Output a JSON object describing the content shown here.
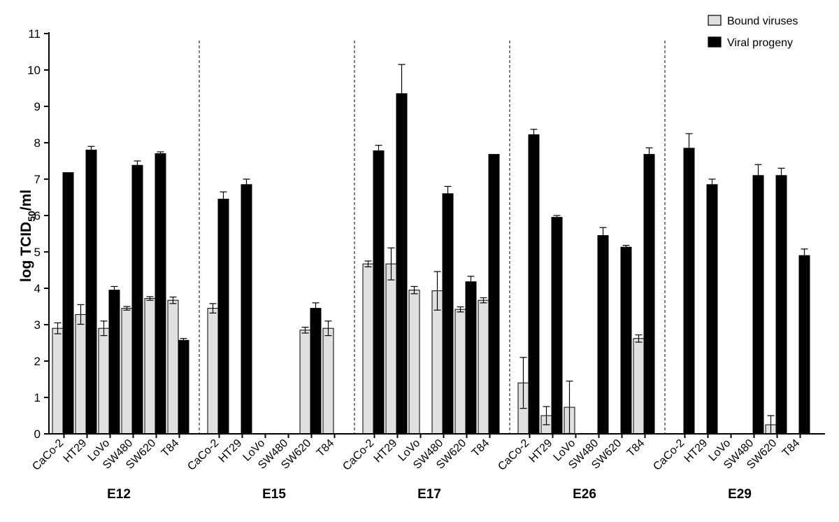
{
  "chart_data": {
    "type": "bar",
    "ylabel": "log TCID50/ml",
    "ylabel_main": "log TCID",
    "ylabel_sub": "50",
    "ylabel_tail": "/ml",
    "ylim": [
      0,
      11
    ],
    "yticks": [
      0,
      1,
      2,
      3,
      4,
      5,
      6,
      7,
      8,
      9,
      10,
      11
    ],
    "legend_position": "top-right",
    "colors": {
      "bound": "#e0e0e0",
      "progeny": "#000000",
      "edge": "#000000"
    },
    "series": [
      {
        "name": "Bound viruses",
        "key": "bound"
      },
      {
        "name": "Viral progeny",
        "key": "progeny"
      }
    ],
    "groups": [
      {
        "label": "E12",
        "cells": [
          {
            "label": "CaCo-2",
            "bound": 2.9,
            "bound_err": 0.15,
            "progeny": 7.18,
            "progeny_err": null
          },
          {
            "label": "HT29",
            "bound": 3.28,
            "bound_err": 0.27,
            "progeny": 7.8,
            "progeny_err": 0.1
          },
          {
            "label": "LoVo",
            "bound": 2.9,
            "bound_err": 0.2,
            "progeny": 3.95,
            "progeny_err": 0.1
          },
          {
            "label": "SW480",
            "bound": 3.45,
            "bound_err": 0.05,
            "progeny": 7.38,
            "progeny_err": 0.12
          },
          {
            "label": "SW620",
            "bound": 3.72,
            "bound_err": 0.05,
            "progeny": 7.7,
            "progeny_err": 0.05
          },
          {
            "label": "T84",
            "bound": 3.67,
            "bound_err": 0.09,
            "progeny": 2.57,
            "progeny_err": 0.05
          }
        ]
      },
      {
        "label": "E15",
        "cells": [
          {
            "label": "CaCo-2",
            "bound": 3.45,
            "bound_err": 0.13,
            "progeny": 6.45,
            "progeny_err": 0.2
          },
          {
            "label": "HT29",
            "bound": null,
            "bound_err": null,
            "progeny": 6.85,
            "progeny_err": 0.15
          },
          {
            "label": "LoVo",
            "bound": null,
            "bound_err": null,
            "progeny": null,
            "progeny_err": null
          },
          {
            "label": "SW480",
            "bound": null,
            "bound_err": null,
            "progeny": null,
            "progeny_err": null
          },
          {
            "label": "SW620",
            "bound": 2.85,
            "bound_err": 0.08,
            "progeny": 3.45,
            "progeny_err": 0.15
          },
          {
            "label": "T84",
            "bound": 2.9,
            "bound_err": 0.2,
            "progeny": null,
            "progeny_err": null
          }
        ]
      },
      {
        "label": "E17",
        "cells": [
          {
            "label": "CaCo-2",
            "bound": 4.67,
            "bound_err": 0.08,
            "progeny": 7.78,
            "progeny_err": 0.15
          },
          {
            "label": "HT29",
            "bound": 4.67,
            "bound_err": 0.44,
            "progeny": 9.35,
            "progeny_err": 0.8
          },
          {
            "label": "LoVo",
            "bound": 3.95,
            "bound_err": 0.1,
            "progeny": null,
            "progeny_err": null
          },
          {
            "label": "SW480",
            "bound": 3.93,
            "bound_err": 0.53,
            "progeny": 6.6,
            "progeny_err": 0.2
          },
          {
            "label": "SW620",
            "bound": 3.42,
            "bound_err": 0.07,
            "progeny": 4.18,
            "progeny_err": 0.15
          },
          {
            "label": "T84",
            "bound": 3.67,
            "bound_err": 0.07,
            "progeny": 7.68,
            "progeny_err": null
          }
        ]
      },
      {
        "label": "E26",
        "cells": [
          {
            "label": "CaCo-2",
            "bound": 1.4,
            "bound_err": 0.7,
            "progeny": 8.22,
            "progeny_err": 0.15
          },
          {
            "label": "HT29",
            "bound": 0.5,
            "bound_err": 0.25,
            "progeny": 5.95,
            "progeny_err": 0.05
          },
          {
            "label": "LoVo",
            "bound": 0.73,
            "bound_err": 0.72,
            "progeny": null,
            "progeny_err": null
          },
          {
            "label": "SW480",
            "bound": null,
            "bound_err": null,
            "progeny": 5.45,
            "progeny_err": 0.22
          },
          {
            "label": "SW620",
            "bound": null,
            "bound_err": null,
            "progeny": 5.13,
            "progeny_err": 0.05
          },
          {
            "label": "T84",
            "bound": 2.62,
            "bound_err": 0.1,
            "progeny": 7.68,
            "progeny_err": 0.18
          }
        ]
      },
      {
        "label": "E29",
        "cells": [
          {
            "label": "CaCo-2",
            "bound": null,
            "bound_err": null,
            "progeny": 7.85,
            "progeny_err": 0.4
          },
          {
            "label": "HT29",
            "bound": null,
            "bound_err": null,
            "progeny": 6.85,
            "progeny_err": 0.15
          },
          {
            "label": "LoVo",
            "bound": null,
            "bound_err": null,
            "progeny": null,
            "progeny_err": null
          },
          {
            "label": "SW480",
            "bound": null,
            "bound_err": null,
            "progeny": 7.1,
            "progeny_err": 0.3
          },
          {
            "label": "SW620",
            "bound": 0.25,
            "bound_err": 0.25,
            "progeny": 7.1,
            "progeny_err": 0.2
          },
          {
            "label": "T84",
            "bound": null,
            "bound_err": null,
            "progeny": 4.9,
            "progeny_err": 0.18
          }
        ]
      }
    ]
  }
}
